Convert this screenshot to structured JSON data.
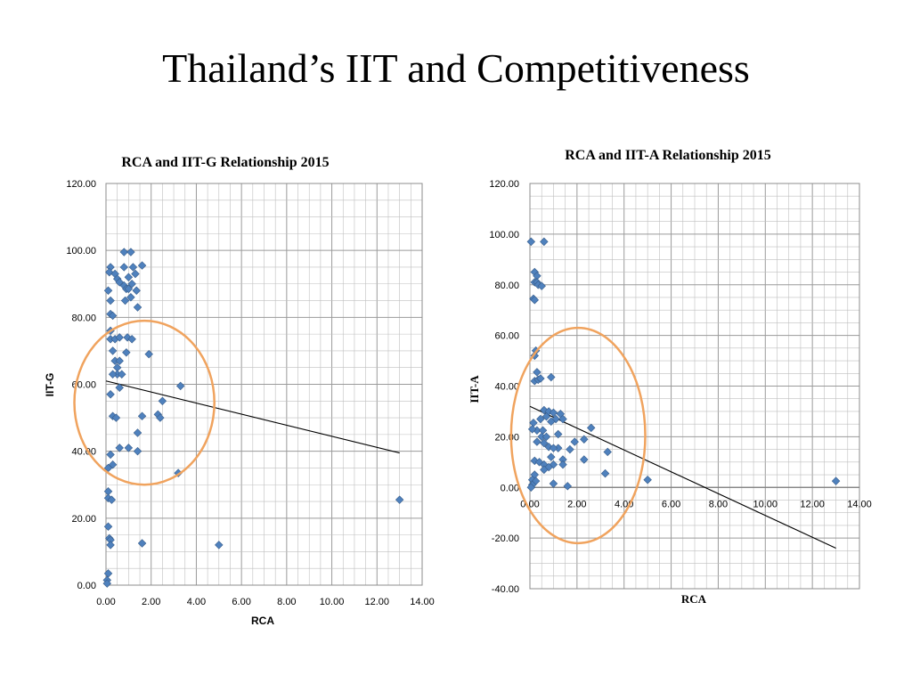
{
  "slide": {
    "title": "Thailand’s IIT and Competitiveness"
  },
  "colors": {
    "marker": "#4f81bd",
    "marker_edge": "#385d8a",
    "ellipse": "#f0a35e",
    "trend": "#000000",
    "grid": "#bfbfbf"
  },
  "chart_data": [
    {
      "type": "scatter",
      "title": "RCA and IIT-G Relationship 2015",
      "xlabel": "RCA",
      "ylabel": "IIT-G",
      "xlim": [
        0,
        14
      ],
      "ylim": [
        0,
        120
      ],
      "x_ticks": [
        "0.00",
        "2.00",
        "4.00",
        "6.00",
        "8.00",
        "10.00",
        "12.00",
        "14.00"
      ],
      "y_ticks": [
        "0.00",
        "20.00",
        "40.00",
        "60.00",
        "80.00",
        "100.00",
        "120.00"
      ],
      "grid": true,
      "trendline": {
        "x": [
          0,
          13
        ],
        "y": [
          61,
          39.5
        ]
      },
      "points": [
        [
          0.8,
          99.5
        ],
        [
          1.1,
          99.5
        ],
        [
          0.2,
          95
        ],
        [
          0.8,
          95
        ],
        [
          1.2,
          95
        ],
        [
          1.6,
          95.5
        ],
        [
          0.15,
          93.5
        ],
        [
          0.4,
          93
        ],
        [
          1.0,
          92
        ],
        [
          1.3,
          93
        ],
        [
          0.5,
          91.5
        ],
        [
          0.6,
          90.5
        ],
        [
          0.8,
          89.5
        ],
        [
          0.9,
          88.5
        ],
        [
          1.0,
          88.5
        ],
        [
          1.15,
          90
        ],
        [
          1.35,
          88
        ],
        [
          0.1,
          88
        ],
        [
          0.85,
          85
        ],
        [
          1.1,
          86
        ],
        [
          0.2,
          85
        ],
        [
          1.4,
          83
        ],
        [
          0.2,
          81
        ],
        [
          0.3,
          80.5
        ],
        [
          0.2,
          76
        ],
        [
          0.2,
          73.5
        ],
        [
          0.4,
          73.5
        ],
        [
          0.6,
          74
        ],
        [
          0.95,
          74
        ],
        [
          1.15,
          73.5
        ],
        [
          0.3,
          70
        ],
        [
          0.9,
          69.5
        ],
        [
          1.9,
          69
        ],
        [
          0.4,
          67
        ],
        [
          0.6,
          67
        ],
        [
          0.5,
          65
        ],
        [
          0.5,
          63
        ],
        [
          0.7,
          63
        ],
        [
          0.3,
          63
        ],
        [
          0.6,
          59
        ],
        [
          3.3,
          59.5
        ],
        [
          0.2,
          57
        ],
        [
          2.5,
          55
        ],
        [
          2.3,
          51
        ],
        [
          2.4,
          50
        ],
        [
          1.6,
          50.5
        ],
        [
          0.3,
          50.5
        ],
        [
          0.45,
          50
        ],
        [
          1.4,
          45.5
        ],
        [
          0.6,
          41
        ],
        [
          1.0,
          41
        ],
        [
          1.4,
          40
        ],
        [
          0.2,
          39
        ],
        [
          0.3,
          36
        ],
        [
          0.1,
          35
        ],
        [
          3.2,
          33.5
        ],
        [
          0.1,
          28
        ],
        [
          0.1,
          26
        ],
        [
          0.25,
          25.5
        ],
        [
          13.0,
          25.5
        ],
        [
          0.1,
          17.5
        ],
        [
          0.15,
          14
        ],
        [
          0.2,
          13.5
        ],
        [
          0.2,
          12
        ],
        [
          1.6,
          12.5
        ],
        [
          5.0,
          12
        ],
        [
          0.1,
          3.5
        ],
        [
          0.05,
          1.5
        ],
        [
          0.05,
          0.5
        ]
      ],
      "ellipse": {
        "cx": 1.7,
        "cy": 54.5,
        "rx": 3.1,
        "ry": 24.5
      }
    },
    {
      "type": "scatter",
      "title": "RCA and IIT-A Relationship 2015",
      "xlabel": "RCA",
      "ylabel": "IIT-A",
      "xlim": [
        0,
        14
      ],
      "ylim": [
        -40,
        120
      ],
      "x_ticks": [
        "0.00",
        "2.00",
        "4.00",
        "6.00",
        "8.00",
        "10.00",
        "12.00",
        "14.00"
      ],
      "y_ticks": [
        "-40.00",
        "-20.00",
        "0.00",
        "20.00",
        "40.00",
        "60.00",
        "80.00",
        "100.00",
        "120.00"
      ],
      "grid": true,
      "trendline": {
        "x": [
          0,
          13
        ],
        "y": [
          32,
          -24
        ]
      },
      "points": [
        [
          0.05,
          97
        ],
        [
          0.6,
          97
        ],
        [
          0.2,
          85
        ],
        [
          0.3,
          83.5
        ],
        [
          0.2,
          81
        ],
        [
          0.3,
          81
        ],
        [
          0.35,
          80
        ],
        [
          0.5,
          79.5
        ],
        [
          0.15,
          74.5
        ],
        [
          0.2,
          74
        ],
        [
          0.25,
          54
        ],
        [
          0.2,
          52
        ],
        [
          0.3,
          45.5
        ],
        [
          0.2,
          42
        ],
        [
          0.35,
          42.5
        ],
        [
          0.45,
          43
        ],
        [
          0.9,
          43.5
        ],
        [
          0.6,
          30.5
        ],
        [
          0.8,
          30
        ],
        [
          1.0,
          29.5
        ],
        [
          0.7,
          28
        ],
        [
          1.3,
          29
        ],
        [
          0.15,
          25.5
        ],
        [
          0.45,
          27
        ],
        [
          1.1,
          27
        ],
        [
          0.9,
          26
        ],
        [
          1.4,
          27
        ],
        [
          2.6,
          23.5
        ],
        [
          0.3,
          22.5
        ],
        [
          0.1,
          23
        ],
        [
          0.55,
          22.5
        ],
        [
          0.5,
          20
        ],
        [
          0.7,
          20
        ],
        [
          1.2,
          21
        ],
        [
          2.3,
          19
        ],
        [
          0.3,
          18
        ],
        [
          0.6,
          17.5
        ],
        [
          1.9,
          18
        ],
        [
          0.8,
          16
        ],
        [
          1.2,
          15.5
        ],
        [
          1.7,
          15
        ],
        [
          1.0,
          15.5
        ],
        [
          3.3,
          14
        ],
        [
          0.9,
          12
        ],
        [
          1.4,
          11
        ],
        [
          2.3,
          11
        ],
        [
          0.2,
          10.5
        ],
        [
          0.4,
          10
        ],
        [
          0.6,
          9
        ],
        [
          1.0,
          9
        ],
        [
          1.4,
          9
        ],
        [
          0.8,
          8
        ],
        [
          0.6,
          7
        ],
        [
          3.2,
          5.5
        ],
        [
          0.2,
          5
        ],
        [
          0.1,
          3
        ],
        [
          0.25,
          2.5
        ],
        [
          0.1,
          1
        ],
        [
          0.05,
          0
        ],
        [
          5.0,
          3
        ],
        [
          13.0,
          2.5
        ],
        [
          1.0,
          1.5
        ],
        [
          1.6,
          0.5
        ]
      ],
      "ellipse": {
        "cx": 2.05,
        "cy": 20.5,
        "rx": 2.85,
        "ry": 42.5
      }
    }
  ]
}
